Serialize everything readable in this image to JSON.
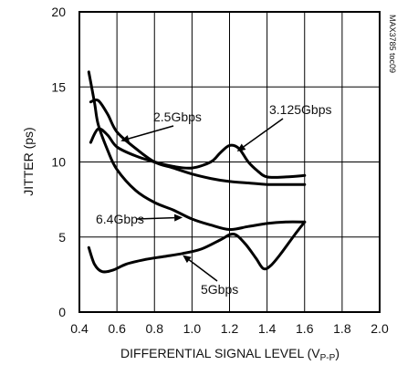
{
  "chart_data": {
    "type": "line",
    "xlabel_main": "DIFFERENTIAL SIGNAL LEVEL (V",
    "xlabel_sub": "P-P",
    "xlabel_close": ")",
    "ylabel": "JITTER (ps)",
    "side_label": "MAX3785 toc09",
    "xlim": [
      0.4,
      2.0
    ],
    "ylim": [
      0,
      20
    ],
    "grid": true,
    "xticks": [
      0.4,
      0.6,
      0.8,
      1.0,
      1.2,
      1.4,
      1.6,
      1.8,
      2.0
    ],
    "xtick_labels": [
      "0.4",
      "0.6",
      "0.8",
      "1.0",
      "1.2",
      "1.4",
      "1.6",
      "1.8",
      "2.0"
    ],
    "yticks": [
      0,
      5,
      10,
      15,
      20
    ],
    "ytick_labels": [
      "0",
      "5",
      "10",
      "15",
      "20"
    ],
    "series": [
      {
        "name": "2.5Gbps",
        "x": [
          0.46,
          0.5,
          0.55,
          0.6,
          0.7,
          0.8,
          0.9,
          1.0,
          1.1,
          1.2,
          1.3,
          1.4,
          1.5,
          1.6
        ],
        "y": [
          14.0,
          14.1,
          13.2,
          12.0,
          10.9,
          10.0,
          9.6,
          9.2,
          8.9,
          8.7,
          8.6,
          8.5,
          8.5,
          8.5
        ]
      },
      {
        "name": "3.125Gbps",
        "x": [
          0.46,
          0.5,
          0.55,
          0.6,
          0.7,
          0.8,
          0.9,
          1.0,
          1.1,
          1.15,
          1.2,
          1.25,
          1.3,
          1.35,
          1.4,
          1.5,
          1.6
        ],
        "y": [
          11.3,
          12.2,
          11.8,
          11.0,
          10.4,
          10.0,
          9.7,
          9.6,
          10.0,
          10.6,
          11.1,
          10.9,
          10.0,
          9.4,
          9.0,
          9.0,
          9.1
        ]
      },
      {
        "name": "6.4Gbps",
        "x": [
          0.45,
          0.48,
          0.5,
          0.55,
          0.6,
          0.7,
          0.8,
          0.9,
          1.0,
          1.1,
          1.2,
          1.3,
          1.4,
          1.5,
          1.6
        ],
        "y": [
          16.0,
          14.0,
          12.5,
          10.8,
          9.5,
          8.1,
          7.3,
          6.8,
          6.2,
          5.8,
          5.5,
          5.7,
          5.9,
          6.0,
          6.0
        ]
      },
      {
        "name": "5Gbps",
        "x": [
          0.45,
          0.48,
          0.52,
          0.58,
          0.65,
          0.75,
          0.85,
          0.95,
          1.05,
          1.15,
          1.22,
          1.28,
          1.34,
          1.38,
          1.42,
          1.48,
          1.55,
          1.6
        ],
        "y": [
          4.3,
          3.2,
          2.7,
          2.8,
          3.2,
          3.5,
          3.7,
          3.9,
          4.2,
          4.8,
          5.2,
          4.6,
          3.6,
          2.9,
          3.1,
          4.0,
          5.2,
          6.0
        ]
      }
    ],
    "annotations": [
      {
        "text": "2.5Gbps",
        "arrow_to": [
          0.62,
          11.4
        ]
      },
      {
        "text": "3.125Gbps",
        "arrow_to": [
          1.24,
          10.7
        ]
      },
      {
        "text": "6.4Gbps",
        "arrow_to": [
          0.95,
          6.3
        ]
      },
      {
        "text": "5Gbps",
        "arrow_to": [
          0.95,
          3.8
        ]
      }
    ]
  }
}
